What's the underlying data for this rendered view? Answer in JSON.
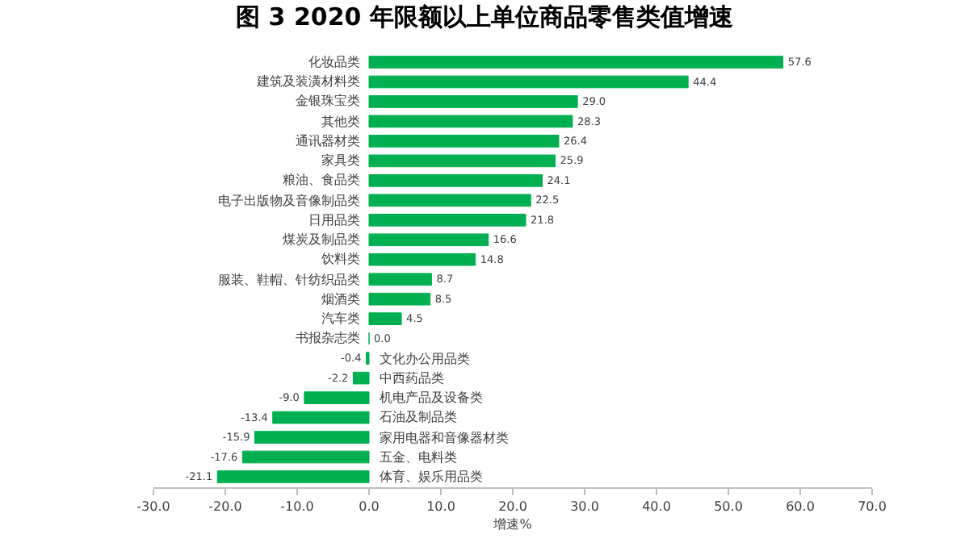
{
  "chart_data": {
    "type": "bar",
    "orientation": "horizontal",
    "title": "图 3 2020 年限额以上单位商品零售类值增速",
    "xlabel": "增速%",
    "categories": [
      "化妆品类",
      "建筑及装潢材料类",
      "金银珠宝类",
      "其他类",
      "通讯器材类",
      "家具类",
      "粮油、食品类",
      "电子出版物及音像制品类",
      "日用品类",
      "煤炭及制品类",
      "饮料类",
      "服装、鞋帽、针纺织品类",
      "烟酒类",
      "汽车类",
      "书报杂志类",
      "文化办公用品类",
      "中西药品类",
      "机电产品及设备类",
      "石油及制品类",
      "家用电器和音像器材类",
      "五金、电料类",
      "体育、娱乐用品类"
    ],
    "values": [
      57.6,
      44.4,
      29.0,
      28.3,
      26.4,
      25.9,
      24.1,
      22.5,
      21.8,
      16.6,
      14.8,
      8.7,
      8.5,
      4.5,
      0.0,
      -0.4,
      -2.2,
      -9.0,
      -13.4,
      -15.9,
      -17.6,
      -21.1
    ],
    "value_labels": [
      "57.6",
      "44.4",
      "29.0",
      "28.3",
      "26.4",
      "25.9",
      "24.1",
      "22.5",
      "21.8",
      "16.6",
      "14.8",
      "8.7",
      "8.5",
      "4.5",
      "0.0",
      "-0.4",
      "-2.2",
      "-9.0",
      "-13.4",
      "-15.9",
      "-17.6",
      "-21.1"
    ],
    "color": "#00b050",
    "xlim": [
      -30,
      70
    ],
    "xticks": [
      {
        "value": -30,
        "label": "-30.0"
      },
      {
        "value": -20,
        "label": "-20.0"
      },
      {
        "value": -10,
        "label": "-10.0"
      },
      {
        "value": 0,
        "label": "0.0"
      },
      {
        "value": 10,
        "label": "10.0"
      },
      {
        "value": 20,
        "label": "20.0"
      },
      {
        "value": 30,
        "label": "30.0"
      },
      {
        "value": 40,
        "label": "40.0"
      },
      {
        "value": 50,
        "label": "50.0"
      },
      {
        "value": 60,
        "label": "60.0"
      },
      {
        "value": 70,
        "label": "70.0"
      }
    ],
    "legend": false
  }
}
